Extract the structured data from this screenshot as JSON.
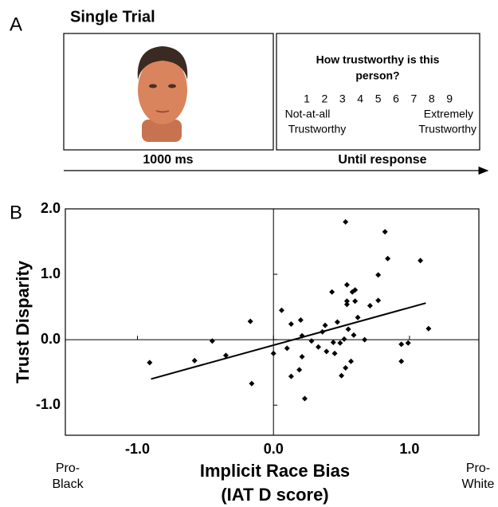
{
  "panel_labels": [
    "A",
    "B"
  ],
  "trial": {
    "title": "Single Trial",
    "question": [
      "How trustworthy is this",
      "person?"
    ],
    "scale": [
      1,
      2,
      3,
      4,
      5,
      6,
      7,
      8,
      9
    ],
    "low_anchor": [
      "Not-at-all",
      "Trustworthy"
    ],
    "high_anchor": [
      "Extremely",
      "Trustworthy"
    ],
    "durations": [
      "1000 ms",
      "Until response"
    ]
  },
  "chart_data": {
    "type": "scatter",
    "ylabel": "Trust Disparity",
    "xlabel": [
      "Implicit Race Bias",
      "(IAT D score)"
    ],
    "annotations": [
      [
        "Pro-",
        "Black"
      ],
      [
        "Pro-",
        "White"
      ]
    ],
    "xlim": [
      -1.53,
      1.51
    ],
    "ylim": [
      -1.46,
      2.0
    ],
    "xticks": [
      {
        "value": -1,
        "label": "-1.0"
      },
      {
        "value": 0,
        "label": "0.0"
      },
      {
        "value": 1,
        "label": "1.0"
      }
    ],
    "yticks": [
      {
        "value": 2,
        "label": "2.0"
      },
      {
        "value": 1,
        "label": "1.0"
      },
      {
        "value": 0,
        "label": "0.0"
      },
      {
        "value": -1,
        "label": "-1.0"
      }
    ],
    "color": "#000000",
    "x": [
      -0.91,
      -0.58,
      -0.45,
      -0.35,
      -0.17,
      -0.16,
      0.0,
      0.06,
      0.1,
      0.13,
      0.13,
      0.19,
      0.2,
      0.21,
      0.21,
      0.23,
      0.28,
      0.33,
      0.36,
      0.38,
      0.39,
      0.43,
      0.44,
      0.45,
      0.47,
      0.49,
      0.5,
      0.52,
      0.53,
      0.53,
      0.54,
      0.54,
      0.54,
      0.55,
      0.57,
      0.58,
      0.59,
      0.6,
      0.6,
      0.62,
      0.67,
      0.71,
      0.77,
      0.77,
      0.82,
      0.84,
      0.94,
      0.94,
      0.99,
      1.08,
      1.14
    ],
    "values": [
      -0.35,
      -0.32,
      -0.02,
      -0.24,
      0.28,
      -0.67,
      -0.21,
      0.45,
      -0.13,
      0.24,
      -0.56,
      -0.46,
      0.3,
      0.06,
      -0.26,
      -0.9,
      -0.02,
      -0.11,
      0.12,
      0.22,
      -0.18,
      0.73,
      -0.04,
      -0.21,
      0.27,
      -0.05,
      -0.55,
      0.01,
      -0.43,
      1.8,
      0.84,
      0.59,
      0.54,
      0.16,
      -0.33,
      0.73,
      0.07,
      0.76,
      0.59,
      0.34,
      0.0,
      0.52,
      0.6,
      0.99,
      1.65,
      1.24,
      -0.33,
      -0.07,
      -0.05,
      1.21,
      0.17
    ],
    "trendline": {
      "x": [
        -0.9,
        1.12
      ],
      "y": [
        -0.6,
        0.56
      ]
    }
  }
}
